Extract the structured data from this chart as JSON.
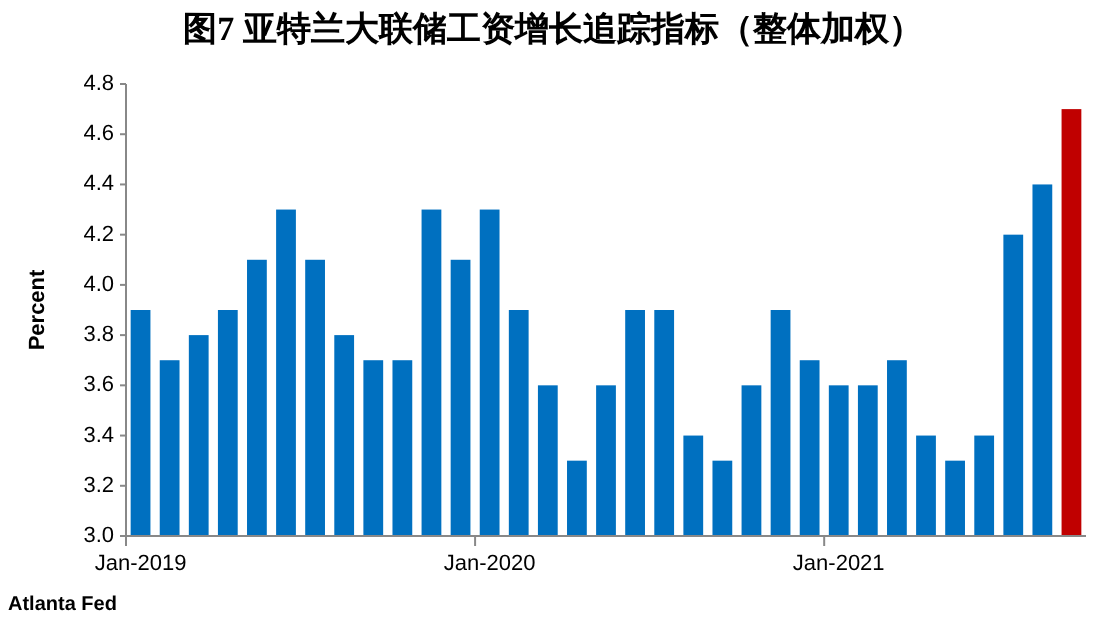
{
  "chart_data": {
    "type": "bar",
    "title": "图7  亚特兰大联储工资增长追踪指标（整体加权）",
    "ylabel": "Percent",
    "categories": [
      "Jan-2019",
      null,
      null,
      null,
      null,
      null,
      null,
      null,
      null,
      null,
      null,
      null,
      "Jan-2020",
      null,
      null,
      null,
      null,
      null,
      null,
      null,
      null,
      null,
      null,
      null,
      "Jan-2021",
      null,
      null,
      null,
      null,
      null,
      null,
      null,
      null
    ],
    "values": [
      3.9,
      3.7,
      3.8,
      3.9,
      4.1,
      4.3,
      4.1,
      3.8,
      3.7,
      3.7,
      4.3,
      4.1,
      4.3,
      3.9,
      3.6,
      3.3,
      3.6,
      3.9,
      3.9,
      3.4,
      3.3,
      3.6,
      3.9,
      3.7,
      3.6,
      3.6,
      3.7,
      3.4,
      3.3,
      3.4,
      4.2,
      4.4,
      4.7
    ],
    "colors": [
      "#0070c0",
      "#0070c0",
      "#0070c0",
      "#0070c0",
      "#0070c0",
      "#0070c0",
      "#0070c0",
      "#0070c0",
      "#0070c0",
      "#0070c0",
      "#0070c0",
      "#0070c0",
      "#0070c0",
      "#0070c0",
      "#0070c0",
      "#0070c0",
      "#0070c0",
      "#0070c0",
      "#0070c0",
      "#0070c0",
      "#0070c0",
      "#0070c0",
      "#0070c0",
      "#0070c0",
      "#0070c0",
      "#0070c0",
      "#0070c0",
      "#0070c0",
      "#0070c0",
      "#0070c0",
      "#0070c0",
      "#0070c0",
      "#c00000"
    ],
    "ylim": [
      3.0,
      4.8
    ],
    "yticks": [
      {
        "value": 3.0,
        "label": "3.0"
      },
      3.2,
      3.4,
      3.6,
      3.8,
      {
        "value": 4.0,
        "label": "4.0"
      },
      4.2,
      4.4,
      4.6,
      4.8
    ],
    "grid": false,
    "annotations": [
      "Atlanta Fed"
    ]
  }
}
